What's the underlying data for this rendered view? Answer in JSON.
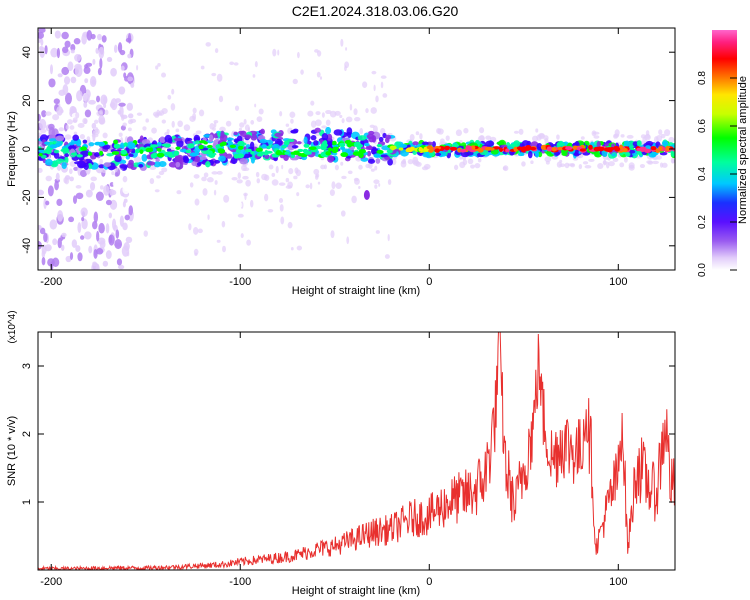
{
  "figure_title": "C2E1.2024.318.03.06.G20",
  "colors": {
    "snr_line": "#e8302e",
    "axis": "#000000",
    "colormap": [
      "#ffffff",
      "#e2cdfa",
      "#b07ef0",
      "#8a2be2",
      "#3a00ff",
      "#00c8ff",
      "#00ff9c",
      "#00ff00",
      "#c8ff00",
      "#ffe600",
      "#ff7a00",
      "#ff0000",
      "#ff3090",
      "#ff66cc"
    ]
  },
  "chart_data": [
    {
      "type": "heatmap",
      "xlabel": "Height of straight line (km)",
      "ylabel": "Frequency (Hz)",
      "xlim": [
        -207,
        130
      ],
      "ylim": [
        -50,
        50
      ],
      "xticks": [
        -200,
        -100,
        0,
        100
      ],
      "yticks": [
        -40,
        -20,
        0,
        20,
        40
      ],
      "grid": false,
      "colorbar": {
        "label": "Normalized spectral amplitude",
        "range": [
          0.0,
          1.0
        ],
        "ticks": [
          "0.0",
          "0.2",
          "0.4",
          "0.6",
          "0.8"
        ],
        "tick_values": [
          0.0,
          0.2,
          0.4,
          0.6,
          0.8
        ]
      },
      "features": [
        {
          "x_range": [
            -207,
            -160
          ],
          "freq_range": [
            -50,
            50
          ],
          "amplitude": 0.05,
          "shape": "scattered noise"
        },
        {
          "x_range": [
            -207,
            -20
          ],
          "center_freq": 0,
          "bandwidth": 12,
          "amplitude": 0.3
        },
        {
          "x_range": [
            -20,
            130
          ],
          "center_freq": 0,
          "bandwidth": 4,
          "amplitude": 0.9
        },
        {
          "x": -33,
          "freq": -19,
          "amplitude": 0.25
        }
      ]
    },
    {
      "type": "line",
      "xlabel": "Height of straight line (km)",
      "ylabel": "SNR (10 * v/v)",
      "y_multiplier": "(x10^4)",
      "xlim": [
        -207,
        130
      ],
      "ylim": [
        0,
        3.5
      ],
      "xticks": [
        -200,
        -100,
        0,
        100
      ],
      "yticks": [
        1,
        2,
        3
      ],
      "grid": false,
      "series": [
        {
          "x": [
            -207,
            -190,
            -170,
            -150,
            -130,
            -110,
            -100,
            -90,
            -80,
            -70,
            -60,
            -50,
            -40,
            -30,
            -20,
            -10,
            0,
            10,
            20,
            25,
            30,
            35,
            37,
            40,
            45,
            50,
            55,
            58,
            60,
            65,
            70,
            75,
            80,
            83,
            86,
            88,
            90,
            95,
            100,
            102,
            105,
            110,
            115,
            120,
            125,
            128,
            130
          ],
          "y": [
            0.02,
            0.02,
            0.03,
            0.03,
            0.05,
            0.08,
            0.12,
            0.15,
            0.18,
            0.22,
            0.3,
            0.35,
            0.45,
            0.55,
            0.6,
            0.75,
            0.8,
            1.0,
            1.1,
            1.2,
            1.4,
            2.3,
            3.4,
            1.6,
            0.9,
            1.5,
            2.1,
            3.1,
            2.3,
            1.6,
            1.9,
            1.8,
            1.7,
            2.4,
            1.6,
            0.3,
            0.5,
            1.0,
            1.4,
            2.3,
            0.3,
            1.6,
            1.3,
            1.1,
            2.2,
            1.2,
            1.3
          ]
        }
      ]
    }
  ]
}
